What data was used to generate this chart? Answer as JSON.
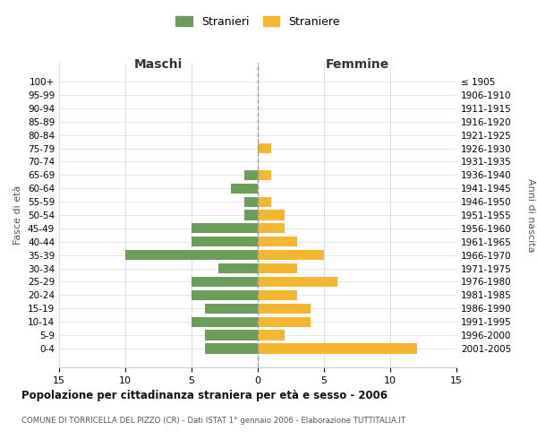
{
  "age_groups": [
    "100+",
    "95-99",
    "90-94",
    "85-89",
    "80-84",
    "75-79",
    "70-74",
    "65-69",
    "60-64",
    "55-59",
    "50-54",
    "45-49",
    "40-44",
    "35-39",
    "30-34",
    "25-29",
    "20-24",
    "15-19",
    "10-14",
    "5-9",
    "0-4"
  ],
  "birth_years": [
    "≤ 1905",
    "1906-1910",
    "1911-1915",
    "1916-1920",
    "1921-1925",
    "1926-1930",
    "1931-1935",
    "1936-1940",
    "1941-1945",
    "1946-1950",
    "1951-1955",
    "1956-1960",
    "1961-1965",
    "1966-1970",
    "1971-1975",
    "1976-1980",
    "1981-1985",
    "1986-1990",
    "1991-1995",
    "1996-2000",
    "2001-2005"
  ],
  "males": [
    0,
    0,
    0,
    0,
    0,
    0,
    0,
    1,
    2,
    1,
    1,
    5,
    5,
    10,
    3,
    5,
    5,
    4,
    5,
    4,
    4
  ],
  "females": [
    0,
    0,
    0,
    0,
    0,
    1,
    0,
    1,
    0,
    1,
    2,
    2,
    3,
    5,
    3,
    6,
    3,
    4,
    4,
    2,
    12
  ],
  "male_color": "#6a9e5a",
  "female_color": "#f5b731",
  "title": "Popolazione per cittadinanza straniera per età e sesso - 2006",
  "subtitle": "COMUNE DI TORRICELLA DEL PIZZO (CR) - Dati ISTAT 1° gennaio 2006 - Elaborazione TUTTITALIA.IT",
  "ylabel_left": "Fasce di età",
  "ylabel_right": "Anni di nascita",
  "xlabel_left": "Maschi",
  "xlabel_right": "Femmine",
  "legend_males": "Stranieri",
  "legend_females": "Straniere",
  "xlim": 15,
  "background_color": "#ffffff",
  "grid_color": "#dddddd"
}
